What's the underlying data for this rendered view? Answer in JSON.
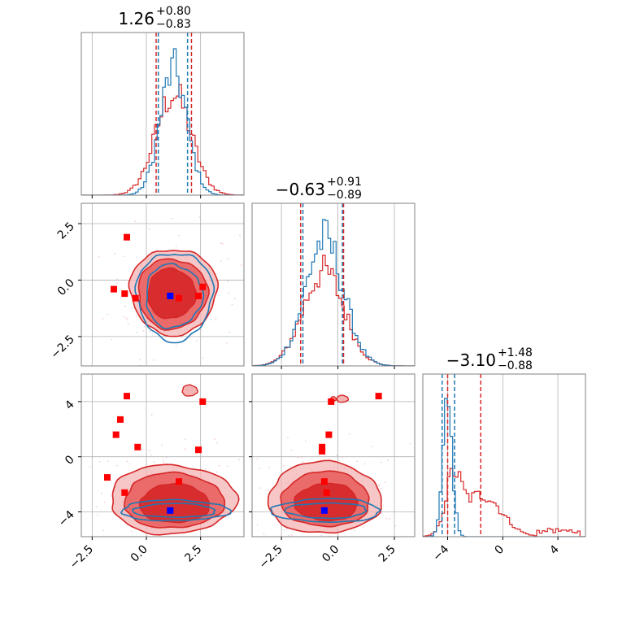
{
  "chart_data": {
    "type": "scatter",
    "plot_kind": "corner",
    "grid": true,
    "colors": {
      "blue": "#1f77b4",
      "red": "#d62728",
      "marker_red": "#ff0000",
      "marker_blue": "#0000ff",
      "grid": "#b0b0b0",
      "frame": "#808080"
    },
    "titles": [
      {
        "main": "1.26",
        "sup": "+0.80",
        "sub": "−0.83"
      },
      {
        "main": "−0.63",
        "sup": "+0.91",
        "sub": "−0.89"
      },
      {
        "main": "−3.10",
        "sup": "+1.48",
        "sub": "−0.88"
      }
    ],
    "axes": [
      {
        "range": [
          -3.0,
          4.5
        ],
        "ticks": [
          -2.5,
          0.0,
          2.5
        ],
        "tick_labels": [
          "−2.5",
          "0.0",
          "2.5"
        ]
      },
      {
        "range": [
          -3.8,
          3.4
        ],
        "ticks": [
          -2.5,
          0.0,
          2.5
        ],
        "tick_labels": [
          "−2.5",
          "0.0",
          "2.5"
        ]
      },
      {
        "range": [
          -5.8,
          6.0
        ],
        "ticks": [
          -4,
          0,
          4
        ],
        "tick_labels": [
          "−4",
          "0",
          "4"
        ]
      }
    ],
    "quantiles": {
      "blue": [
        [
          0.55,
          1.9
        ],
        [
          -1.55,
          0.2
        ],
        [
          -4.4,
          -3.5
        ]
      ],
      "red": [
        [
          0.45,
          2.08
        ],
        [
          -1.65,
          0.25
        ],
        [
          -4.0,
          -1.6
        ]
      ]
    },
    "marginals": {
      "blue": [
        {
          "mean": 1.25,
          "sd": 0.62
        },
        {
          "mean": -0.6,
          "sd": 0.85
        },
        {
          "mean": -4.0,
          "sd": 0.35
        }
      ],
      "red": [
        {
          "mean": 1.25,
          "sd": 0.82
        },
        {
          "mean": -0.63,
          "sd": 0.9
        },
        {
          "mean": -3.6,
          "sd": 0.55,
          "tail": {
            "mean": -1.5,
            "sd": 1.4,
            "w": 0.45
          },
          "far": {
            "from": 2.5,
            "to": 5.6,
            "level": 0.06
          }
        }
      ]
    },
    "pairs": [
      {
        "row": 1,
        "col": 0,
        "red_levels": [
          {
            "cx": 1.25,
            "cy": -0.5,
            "rx": 2.0,
            "ry": 1.9,
            "alpha": 0.45
          },
          {
            "cx": 1.2,
            "cy": -0.6,
            "rx": 1.6,
            "ry": 1.55,
            "alpha": 0.75
          },
          {
            "cx": 1.15,
            "cy": -0.6,
            "rx": 1.1,
            "ry": 1.1,
            "alpha": 1.0
          }
        ],
        "blue_levels": [
          {
            "cx": 1.3,
            "cy": -0.7,
            "rx": 1.75,
            "ry": 1.95
          },
          {
            "cx": 1.25,
            "cy": -0.7,
            "rx": 1.3,
            "ry": 1.4
          }
        ],
        "red_markers": [
          {
            "x": -0.9,
            "y": 1.9
          },
          {
            "x": -1.5,
            "y": -0.4
          },
          {
            "x": -1.0,
            "y": -0.6
          },
          {
            "x": -0.5,
            "y": -0.8
          },
          {
            "x": 1.5,
            "y": -0.8
          },
          {
            "x": 2.4,
            "y": -0.7
          },
          {
            "x": 2.6,
            "y": -0.3
          }
        ],
        "blue_marker": {
          "x": 1.1,
          "y": -0.7
        }
      },
      {
        "row": 2,
        "col": 0,
        "red_levels": [
          {
            "cx": 1.2,
            "cy": -3.1,
            "rx": 2.9,
            "ry": 2.5,
            "alpha": 0.45
          },
          {
            "cx": 1.25,
            "cy": -3.2,
            "rx": 2.3,
            "ry": 2.0,
            "alpha": 0.75
          },
          {
            "cx": 1.3,
            "cy": -3.4,
            "rx": 1.6,
            "ry": 1.4,
            "alpha": 1.0
          }
        ],
        "red_islands": [
          {
            "cx": 2.0,
            "cy": 4.8,
            "rx": 0.35,
            "ry": 0.4
          }
        ],
        "blue_levels": [
          {
            "cx": 1.3,
            "cy": -3.9,
            "rx": 2.5,
            "ry": 0.75
          },
          {
            "cx": 1.3,
            "cy": -3.9,
            "rx": 1.9,
            "ry": 0.5
          }
        ],
        "red_markers": [
          {
            "x": -0.9,
            "y": 4.4
          },
          {
            "x": 2.6,
            "y": 4.0
          },
          {
            "x": -1.2,
            "y": 2.7
          },
          {
            "x": -1.4,
            "y": 1.6
          },
          {
            "x": -0.4,
            "y": 0.7
          },
          {
            "x": 2.4,
            "y": 0.5
          },
          {
            "x": -1.8,
            "y": -1.5
          },
          {
            "x": 1.5,
            "y": -1.8
          },
          {
            "x": -1.0,
            "y": -2.6
          }
        ],
        "blue_marker": {
          "x": 1.1,
          "y": -3.9
        }
      },
      {
        "row": 2,
        "col": 1,
        "red_levels": [
          {
            "cx": -0.6,
            "cy": -3.0,
            "rx": 2.5,
            "ry": 2.6,
            "alpha": 0.45
          },
          {
            "cx": -0.55,
            "cy": -3.1,
            "rx": 1.95,
            "ry": 2.0,
            "alpha": 0.75
          },
          {
            "cx": -0.5,
            "cy": -3.3,
            "rx": 1.4,
            "ry": 1.35,
            "alpha": 1.0
          }
        ],
        "red_islands": [
          {
            "cx": 0.2,
            "cy": 4.2,
            "rx": 0.25,
            "ry": 0.25
          },
          {
            "cx": -0.2,
            "cy": 4.2,
            "rx": 0.12,
            "ry": 0.15
          }
        ],
        "blue_levels": [
          {
            "cx": -0.5,
            "cy": -3.9,
            "rx": 2.4,
            "ry": 0.85
          },
          {
            "cx": -0.5,
            "cy": -3.9,
            "rx": 1.8,
            "ry": 0.55
          }
        ],
        "red_markers": [
          {
            "x": 1.8,
            "y": 4.4
          },
          {
            "x": -0.3,
            "y": 4.0
          },
          {
            "x": -0.4,
            "y": 1.6
          },
          {
            "x": -0.7,
            "y": 0.7
          },
          {
            "x": -0.7,
            "y": 0.4
          },
          {
            "x": -0.6,
            "y": -1.8
          },
          {
            "x": -0.5,
            "y": -2.6
          }
        ],
        "blue_marker": {
          "x": -0.6,
          "y": -3.9
        }
      }
    ]
  }
}
